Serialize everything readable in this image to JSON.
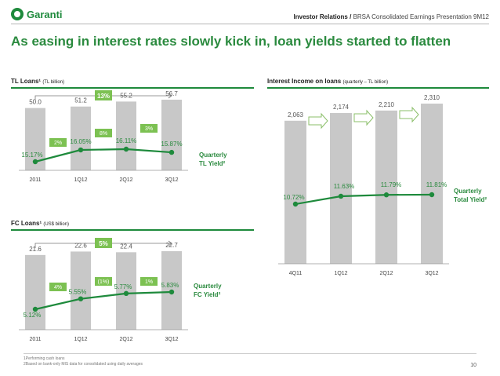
{
  "header": {
    "logo_text": "Garanti",
    "section": "Investor Relations /",
    "doc_title": "BRSA Consolidated Earnings Presentation 9M12"
  },
  "headline": "As easing in interest rates slowly kick in, loan yields started to flatten",
  "panels": {
    "tl_title": "TL Loans¹",
    "tl_sub": "(TL billion)",
    "fc_title": "FC Loans¹",
    "fc_sub": "(US$ billion)",
    "int_title": "Interest Income on loans",
    "int_sub": "(quarterly – TL billion)"
  },
  "footnotes": [
    "1Performing cash loans",
    "2Based on bank-only MIS data for consolidated using daily averages"
  ],
  "page_number": "10",
  "colors": {
    "bar": "#c8c8c8",
    "line": "#1e8a3c",
    "badge": "#7cc152",
    "accent": "#2a8a3e"
  },
  "chart_data": [
    {
      "type": "bar",
      "categories": [
        "2011",
        "1Q12",
        "2Q12",
        "3Q12"
      ],
      "values": [
        50.0,
        51.2,
        55.2,
        56.7
      ],
      "value_labels": [
        "50.0",
        "51.2",
        "55.2",
        "56.7"
      ],
      "overall_growth": "13%",
      "growth_labels": [
        "2%",
        "8%",
        "3%"
      ],
      "line": {
        "values": [
          15.17,
          16.05,
          16.11,
          15.87
        ],
        "labels": [
          "15.17%",
          "16.05%",
          "16.11%",
          "15.87%"
        ]
      },
      "line_legend": [
        "Quarterly",
        "TL Yield²"
      ]
    },
    {
      "type": "bar",
      "categories": [
        "2011",
        "1Q12",
        "2Q12",
        "3Q12"
      ],
      "values": [
        21.6,
        22.6,
        22.4,
        22.7
      ],
      "value_labels": [
        "21.6",
        "22.6",
        "22.4",
        "22.7"
      ],
      "overall_growth": "5%",
      "growth_labels": [
        "4%",
        "(1%)",
        "1%"
      ],
      "line": {
        "values": [
          5.12,
          5.55,
          5.77,
          5.83
        ],
        "labels": [
          "5.12%",
          "5.55%",
          "5.77%",
          "5.83%"
        ]
      },
      "line_legend": [
        "Quarterly",
        "FC Yield²"
      ]
    },
    {
      "type": "bar",
      "categories": [
        "4Q11",
        "1Q12",
        "2Q12",
        "3Q12"
      ],
      "values": [
        2063,
        2174,
        2210,
        2310
      ],
      "value_labels": [
        "2,063",
        "2,174",
        "2,210",
        "2,310"
      ],
      "line": {
        "values": [
          10.72,
          11.63,
          11.79,
          11.81
        ],
        "labels": [
          "10.72%",
          "11.63%",
          "11.79%",
          "11.81%"
        ]
      },
      "line_legend": [
        "Quarterly",
        "Total Yield²"
      ]
    }
  ]
}
